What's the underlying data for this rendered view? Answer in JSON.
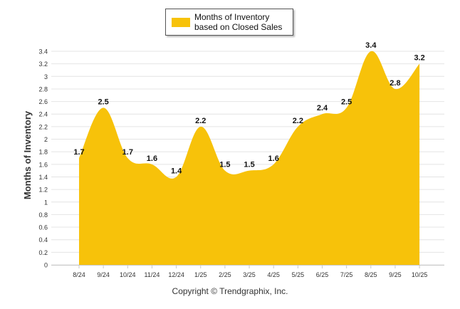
{
  "chart_data": {
    "type": "area",
    "title": "",
    "ylabel": "Months of Inventory",
    "xlabel": "",
    "categories": [
      "8/24",
      "9/24",
      "10/24",
      "11/24",
      "12/24",
      "1/25",
      "2/25",
      "3/25",
      "4/25",
      "5/25",
      "6/25",
      "7/25",
      "8/25",
      "9/25",
      "10/25"
    ],
    "series": [
      {
        "name": "Months of Inventory based on Closed Sales",
        "values": [
          1.7,
          2.5,
          1.7,
          1.6,
          1.4,
          2.2,
          1.5,
          1.5,
          1.6,
          2.2,
          2.4,
          2.5,
          3.4,
          2.8,
          3.2
        ]
      }
    ],
    "ylim": [
      0,
      3.4
    ],
    "yticks": [
      0,
      0.2,
      0.4,
      0.6,
      0.8,
      1,
      1.2,
      1.4,
      1.6,
      1.8,
      2,
      2.2,
      2.4,
      2.6,
      2.8,
      3,
      3.2,
      3.4
    ],
    "grid": true,
    "legend_position": "top-center",
    "colors": {
      "area": "#f7c20a",
      "grid": "#e4e4e4",
      "axis": "#c8c8c8",
      "label": "#111111"
    }
  },
  "legend": {
    "label": "Months of Inventory based on Closed Sales"
  },
  "footer": {
    "copyright": "Copyright © Trendgraphix, Inc."
  }
}
